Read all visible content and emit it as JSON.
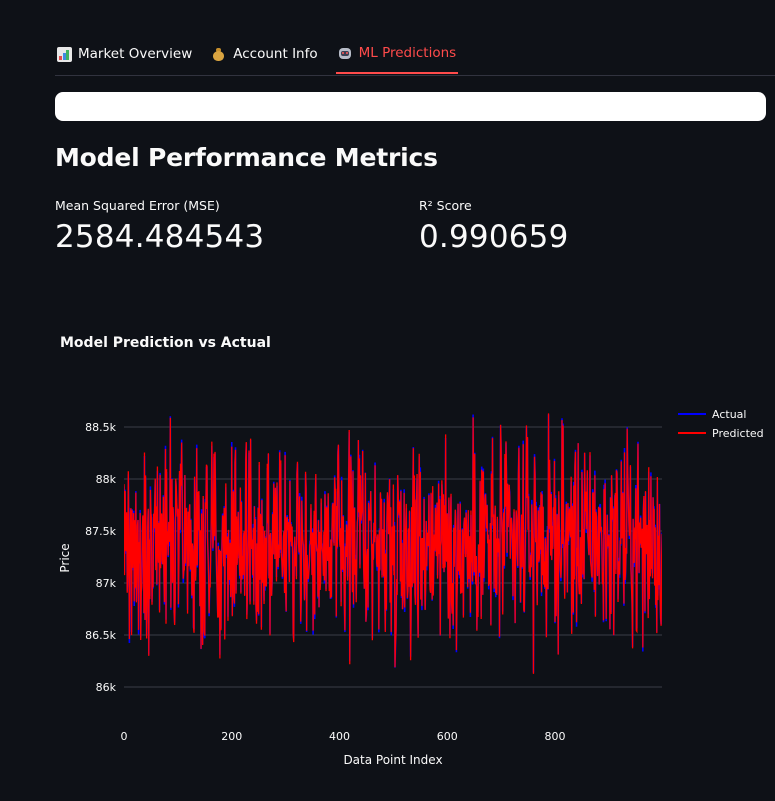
{
  "tabs": [
    {
      "label": "Market Overview",
      "icon": "bar-chart-icon",
      "active": false
    },
    {
      "label": "Account Info",
      "icon": "money-bag-icon",
      "active": false
    },
    {
      "label": "ML Predictions",
      "icon": "robot-icon",
      "active": true
    }
  ],
  "colors": {
    "background": "#0e1117",
    "accent": "#ff4b4b",
    "actual": "#0000ff",
    "predicted": "#ff0000"
  },
  "section": {
    "title": "Model Performance Metrics"
  },
  "metrics": {
    "mse_label": "Mean Squared Error (MSE)",
    "mse_value": "2584.484543",
    "r2_label": "R² Score",
    "r2_value": "0.990659"
  },
  "chart_data": {
    "type": "line",
    "title": "Model Prediction vs Actual",
    "xlabel": "Data Point Index",
    "ylabel": "Price",
    "xlim": [
      0,
      1000
    ],
    "ylim": [
      85800,
      88700
    ],
    "x_ticks": [
      0,
      200,
      400,
      600,
      800
    ],
    "x_tick_labels": [
      "0",
      "200",
      "400",
      "600",
      "800"
    ],
    "y_ticks": [
      86000,
      86500,
      87000,
      87500,
      88000,
      88500
    ],
    "y_tick_labels": [
      "86k",
      "86.5k",
      "87k",
      "87.5k",
      "88k",
      "88.5k"
    ],
    "grid": true,
    "legend_position": "top-right",
    "n_points": 1000,
    "series_summary": {
      "mean": 87400,
      "min": 85850,
      "max": 88620
    },
    "series": [
      {
        "name": "Actual",
        "color": "#0000ff"
      },
      {
        "name": "Predicted",
        "color": "#ff0000"
      }
    ]
  }
}
